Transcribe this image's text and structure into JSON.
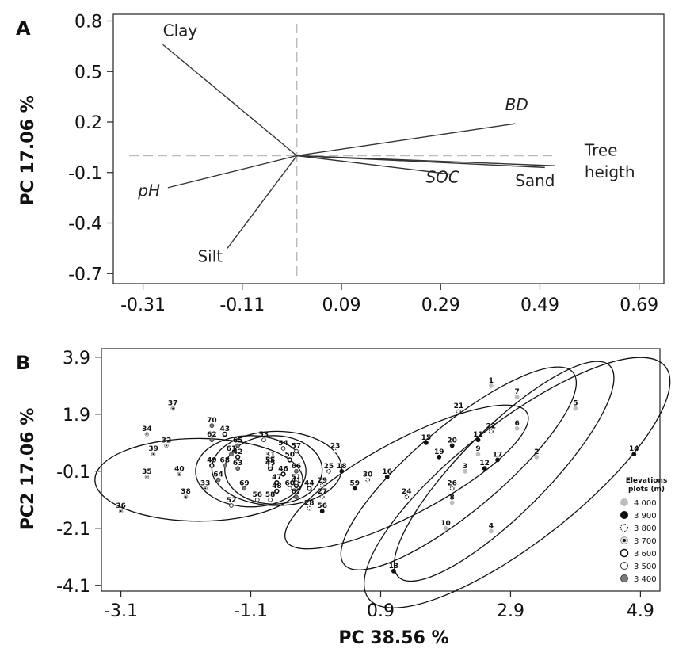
{
  "chart_data": [
    {
      "panel": "A",
      "type": "biplot",
      "ylabel": "PC 17.06 %",
      "xlim": [
        -0.37,
        0.74
      ],
      "ylim": [
        -0.76,
        0.84
      ],
      "x_ticks": [
        "-0.31",
        "-0.11",
        "0.09",
        "0.29",
        "0.49",
        "0.69"
      ],
      "y_ticks": [
        "0.8",
        "0.5",
        "0.2",
        "-0.1",
        "-0.4",
        "-0.7"
      ],
      "origin": [
        0.0,
        0.0
      ],
      "vectors": [
        {
          "name": "Clay",
          "x": -0.27,
          "y": 0.66,
          "label_x": -0.27,
          "label_y": 0.71,
          "italic": false
        },
        {
          "name": "BD",
          "x": 0.44,
          "y": 0.19,
          "label_x": 0.42,
          "label_y": 0.27,
          "italic": true
        },
        {
          "name": "Tree",
          "x": 0.52,
          "y": 0.0,
          "label_x": 0.58,
          "label_y": 0.0,
          "italic": false
        },
        {
          "name": "heigth",
          "x": 0.52,
          "y": -0.06,
          "label_x": 0.58,
          "label_y": -0.13,
          "italic": false
        },
        {
          "name": "Sand",
          "x": 0.5,
          "y": -0.07,
          "label_x": 0.44,
          "label_y": -0.18,
          "italic": false
        },
        {
          "name": "SOC",
          "x": 0.31,
          "y": -0.11,
          "label_x": 0.26,
          "label_y": -0.16,
          "italic": true
        },
        {
          "name": "pH",
          "x": -0.26,
          "y": -0.19,
          "label_x": -0.32,
          "label_y": -0.24,
          "italic": true
        },
        {
          "name": "Silt",
          "x": -0.14,
          "y": -0.55,
          "label_x": -0.2,
          "label_y": -0.63,
          "italic": false
        }
      ]
    },
    {
      "panel": "B",
      "type": "scatter",
      "xlabel": "PC 38.56 %",
      "ylabel": "PC2 17.06 %",
      "xlim": [
        -3.4,
        5.2
      ],
      "ylim": [
        -4.3,
        4.2
      ],
      "x_ticks": [
        "-3.1",
        "-1.1",
        "0.9",
        "2.9",
        "4.9"
      ],
      "y_ticks": [
        "3.9",
        "1.9",
        "-0.1",
        "-2.1",
        "-4.1"
      ],
      "legend": {
        "title_lines": [
          "Elevations",
          "plots (m)"
        ],
        "placement": "right",
        "items": [
          {
            "label": "4 000",
            "style": "grey"
          },
          {
            "label": "3 900",
            "style": "black"
          },
          {
            "label": "3 800",
            "style": "dashed"
          },
          {
            "label": "3 700",
            "style": "dotblack"
          },
          {
            "label": "3 600",
            "style": "thick"
          },
          {
            "label": "3 500",
            "style": "open"
          },
          {
            "label": "3 400",
            "style": "darkgrey"
          }
        ]
      },
      "ellipses": [
        {
          "cx": -1.9,
          "cy": -0.4,
          "rx": 1.6,
          "ry": 1.45,
          "angle": 0
        },
        {
          "cx": -1.1,
          "cy": -0.1,
          "rx": 0.85,
          "ry": 1.25,
          "angle": 0
        },
        {
          "cx": -0.7,
          "cy": 0.0,
          "rx": 1.0,
          "ry": 1.3,
          "angle": 0
        },
        {
          "cx": -0.75,
          "cy": -0.05,
          "rx": 0.75,
          "ry": 1.2,
          "angle": 0
        },
        {
          "cx": 1.3,
          "cy": -0.3,
          "rx": 2.1,
          "ry": 1.3,
          "angle": 28
        },
        {
          "cx": 2.1,
          "cy": 0.0,
          "rx": 2.3,
          "ry": 1.5,
          "angle": 40
        },
        {
          "cx": 2.8,
          "cy": -0.1,
          "rx": 2.3,
          "ry": 1.5,
          "angle": 45
        },
        {
          "cx": 3.0,
          "cy": -0.5,
          "rx": 2.9,
          "ry": 2.1,
          "angle": 38
        }
      ],
      "points": [
        {
          "label": "1",
          "x": 2.6,
          "y": 2.9,
          "style": "grey"
        },
        {
          "label": "2",
          "x": 3.3,
          "y": 0.4,
          "style": "grey"
        },
        {
          "label": "3",
          "x": 2.2,
          "y": -0.1,
          "style": "grey"
        },
        {
          "label": "4",
          "x": 2.6,
          "y": -2.2,
          "style": "grey"
        },
        {
          "label": "5",
          "x": 3.9,
          "y": 2.1,
          "style": "grey"
        },
        {
          "label": "6",
          "x": 3.0,
          "y": 1.4,
          "style": "grey"
        },
        {
          "label": "7",
          "x": 3.0,
          "y": 2.5,
          "style": "grey"
        },
        {
          "label": "8",
          "x": 2.0,
          "y": -1.2,
          "style": "grey"
        },
        {
          "label": "9",
          "x": 2.4,
          "y": 0.5,
          "style": "grey"
        },
        {
          "label": "10",
          "x": 1.9,
          "y": -2.1,
          "style": "grey"
        },
        {
          "label": "11",
          "x": 2.4,
          "y": 1.0,
          "style": "black"
        },
        {
          "label": "12",
          "x": 2.5,
          "y": 0.0,
          "style": "black"
        },
        {
          "label": "13",
          "x": 1.1,
          "y": -3.6,
          "style": "black"
        },
        {
          "label": "14",
          "x": 4.8,
          "y": 0.5,
          "style": "black"
        },
        {
          "label": "15",
          "x": 1.6,
          "y": 0.9,
          "style": "black"
        },
        {
          "label": "16",
          "x": 1.0,
          "y": -0.3,
          "style": "black"
        },
        {
          "label": "17",
          "x": 2.7,
          "y": 0.3,
          "style": "black"
        },
        {
          "label": "18",
          "x": 0.3,
          "y": -0.1,
          "style": "black"
        },
        {
          "label": "19",
          "x": 1.8,
          "y": 0.4,
          "style": "black"
        },
        {
          "label": "20",
          "x": 2.0,
          "y": 0.8,
          "style": "black"
        },
        {
          "label": "21",
          "x": 2.1,
          "y": 2.0,
          "style": "dashed"
        },
        {
          "label": "22",
          "x": 2.6,
          "y": 1.3,
          "style": "dashed"
        },
        {
          "label": "23",
          "x": 0.2,
          "y": 0.6,
          "style": "dashed"
        },
        {
          "label": "24",
          "x": 1.3,
          "y": -1.0,
          "style": "dashed"
        },
        {
          "label": "25",
          "x": 0.1,
          "y": -0.1,
          "style": "dashed"
        },
        {
          "label": "26",
          "x": 2.0,
          "y": -0.7,
          "style": "dashed"
        },
        {
          "label": "27",
          "x": 0.0,
          "y": -1.0,
          "style": "dashed"
        },
        {
          "label": "28",
          "x": -0.2,
          "y": -1.4,
          "style": "dashed"
        },
        {
          "label": "29",
          "x": 0.0,
          "y": -0.6,
          "style": "dashed"
        },
        {
          "label": "30",
          "x": 0.7,
          "y": -0.4,
          "style": "dashed"
        },
        {
          "label": "31",
          "x": -0.8,
          "y": 0.3,
          "style": "open"
        },
        {
          "label": "32",
          "x": -2.4,
          "y": 0.8,
          "style": "dotblack"
        },
        {
          "label": "33",
          "x": -1.8,
          "y": -0.7,
          "style": "dotblack"
        },
        {
          "label": "34",
          "x": -2.7,
          "y": 1.2,
          "style": "dotblack"
        },
        {
          "label": "35",
          "x": -2.7,
          "y": -0.3,
          "style": "dotblack"
        },
        {
          "label": "36",
          "x": -3.1,
          "y": -1.5,
          "style": "dotblack"
        },
        {
          "label": "37",
          "x": -2.3,
          "y": 2.1,
          "style": "dotblack"
        },
        {
          "label": "38",
          "x": -2.1,
          "y": -1.0,
          "style": "dotblack"
        },
        {
          "label": "39",
          "x": -2.6,
          "y": 0.5,
          "style": "dotblack"
        },
        {
          "label": "40",
          "x": -2.2,
          "y": -0.2,
          "style": "dotblack"
        },
        {
          "label": "41",
          "x": -0.4,
          "y": -0.6,
          "style": "thick"
        },
        {
          "label": "42",
          "x": -1.3,
          "y": 0.4,
          "style": "thick"
        },
        {
          "label": "43",
          "x": -1.5,
          "y": 1.2,
          "style": "thick"
        },
        {
          "label": "44",
          "x": -0.2,
          "y": -0.7,
          "style": "thick"
        },
        {
          "label": "45",
          "x": -0.8,
          "y": 0.0,
          "style": "thick"
        },
        {
          "label": "46",
          "x": -0.6,
          "y": -0.2,
          "style": "thick"
        },
        {
          "label": "47",
          "x": -0.7,
          "y": -0.5,
          "style": "thick"
        },
        {
          "label": "48",
          "x": -0.7,
          "y": -0.8,
          "style": "thick"
        },
        {
          "label": "49",
          "x": -1.7,
          "y": 0.1,
          "style": "thick"
        },
        {
          "label": "50",
          "x": -0.5,
          "y": 0.3,
          "style": "thick"
        },
        {
          "label": "51",
          "x": -0.4,
          "y": -0.5,
          "style": "open"
        },
        {
          "label": "52",
          "x": -1.4,
          "y": -1.3,
          "style": "open"
        },
        {
          "label": "53",
          "x": -0.9,
          "y": 1.0,
          "style": "open"
        },
        {
          "label": "54",
          "x": -0.6,
          "y": 0.7,
          "style": "open"
        },
        {
          "label": "55",
          "x": -0.8,
          "y": 0.1,
          "style": "open"
        },
        {
          "label": "56",
          "x": -1.0,
          "y": -1.1,
          "style": "open"
        },
        {
          "label": "57",
          "x": -0.4,
          "y": 0.6,
          "style": "open"
        },
        {
          "label": "58",
          "x": -0.8,
          "y": -1.1,
          "style": "open"
        },
        {
          "label": "59",
          "x": 0.5,
          "y": -0.7,
          "style": "black"
        },
        {
          "label": "60",
          "x": -0.5,
          "y": -0.7,
          "style": "open"
        },
        {
          "label": "61",
          "x": -1.4,
          "y": 0.5,
          "style": "darkgrey"
        },
        {
          "label": "62",
          "x": -1.7,
          "y": 1.0,
          "style": "darkgrey"
        },
        {
          "label": "63",
          "x": -1.3,
          "y": 0.0,
          "style": "darkgrey"
        },
        {
          "label": "64",
          "x": -1.6,
          "y": -0.4,
          "style": "darkgrey"
        },
        {
          "label": "65",
          "x": -1.3,
          "y": 0.8,
          "style": "darkgrey"
        },
        {
          "label": "66",
          "x": -0.4,
          "y": -0.1,
          "style": "darkgrey"
        },
        {
          "label": "67",
          "x": -0.4,
          "y": -1.0,
          "style": "darkgrey"
        },
        {
          "label": "68",
          "x": -1.5,
          "y": 0.1,
          "style": "darkgrey"
        },
        {
          "label": "69",
          "x": -1.2,
          "y": -0.7,
          "style": "darkgrey"
        },
        {
          "label": "70",
          "x": -1.7,
          "y": 1.5,
          "style": "darkgrey"
        },
        {
          "label": "56",
          "x": 0.0,
          "y": -1.5,
          "style": "black"
        }
      ]
    }
  ]
}
